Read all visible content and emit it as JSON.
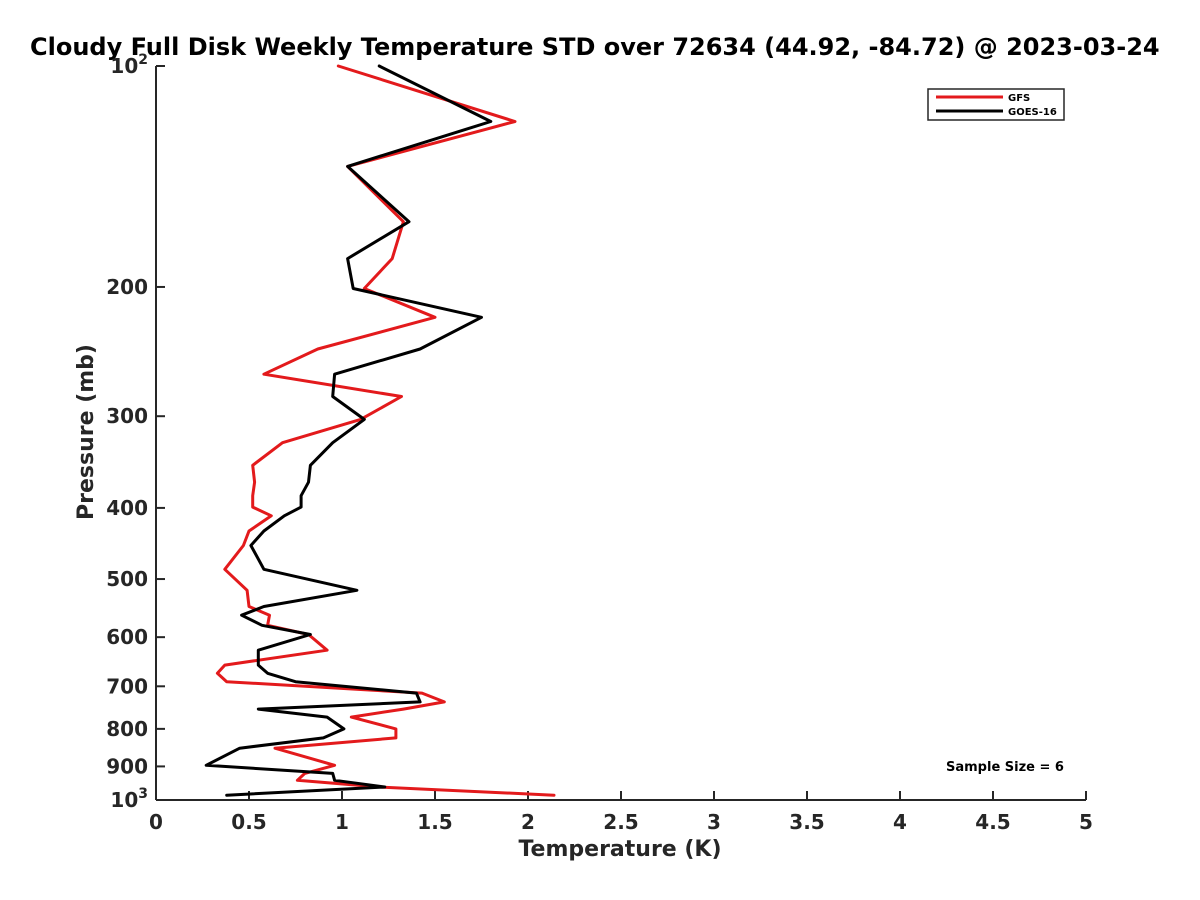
{
  "chart_data": {
    "type": "line",
    "title": "Cloudy Full Disk Weekly Temperature STD over 72634 (44.92, -84.72) @ 2023-03-24",
    "xlabel": "Temperature (K)",
    "ylabel": "Pressure (mb)",
    "xlim": [
      0,
      5
    ],
    "ylim": [
      100,
      1000
    ],
    "y_scale": "log",
    "y_reversed": true,
    "xticks": [
      0,
      0.5,
      1,
      1.5,
      2,
      2.5,
      3,
      3.5,
      4,
      4.5,
      5
    ],
    "xtick_labels": [
      "0",
      "0.5",
      "1",
      "1.5",
      "2",
      "2.5",
      "3",
      "3.5",
      "4",
      "4.5",
      "5"
    ],
    "yticks": [
      100,
      200,
      300,
      400,
      500,
      600,
      700,
      800,
      900,
      1000
    ],
    "ytick_labels": [
      {
        "base": "10",
        "exp": "2"
      },
      {
        "base": "200",
        "exp": ""
      },
      {
        "base": "300",
        "exp": ""
      },
      {
        "base": "400",
        "exp": ""
      },
      {
        "base": "500",
        "exp": ""
      },
      {
        "base": "600",
        "exp": ""
      },
      {
        "base": "700",
        "exp": ""
      },
      {
        "base": "800",
        "exp": ""
      },
      {
        "base": "900",
        "exp": ""
      },
      {
        "base": "10",
        "exp": "3"
      }
    ],
    "grid": false,
    "legend_position": "top-right",
    "annotation": "Sample Size = 6",
    "series": [
      {
        "name": "GFS",
        "color": "#e31a1c",
        "x": [
          0.98,
          1.93,
          1.03,
          1.33,
          1.27,
          1.12,
          1.5,
          0.87,
          0.58,
          1.32,
          1.1,
          0.68,
          0.52,
          0.53,
          0.52,
          0.52,
          0.62,
          0.5,
          0.47,
          0.37,
          0.49,
          0.5,
          0.61,
          0.6,
          0.82,
          0.92,
          0.37,
          0.33,
          0.38,
          1.43,
          1.55,
          1.33,
          1.05,
          1.29,
          1.29,
          0.64,
          0.96,
          0.8,
          0.76,
          1.2,
          2.14
        ],
        "y": [
          100,
          119,
          137,
          163,
          183,
          201,
          220,
          243,
          263,
          282,
          303,
          326,
          350,
          369,
          385,
          399,
          410,
          430,
          450,
          485,
          518,
          545,
          560,
          578,
          595,
          625,
          655,
          672,
          690,
          715,
          735,
          752,
          771,
          800,
          823,
          850,
          897,
          920,
          940,
          960,
          985
        ]
      },
      {
        "name": "GOES-16",
        "color": "#000000",
        "x": [
          1.2,
          1.8,
          1.03,
          1.36,
          1.03,
          1.06,
          1.75,
          1.42,
          0.96,
          0.95,
          1.12,
          0.95,
          0.83,
          0.82,
          0.78,
          0.78,
          0.69,
          0.58,
          0.51,
          0.58,
          1.08,
          0.58,
          0.46,
          0.57,
          0.83,
          0.55,
          0.55,
          0.6,
          0.75,
          1.4,
          1.42,
          0.55,
          0.92,
          1.01,
          0.9,
          0.45,
          0.27,
          0.95,
          0.96,
          1.23,
          0.38
        ]
      }
    ]
  },
  "legend": {
    "items": [
      {
        "label": "GFS",
        "color": "#e31a1c"
      },
      {
        "label": "GOES-16",
        "color": "#000000"
      }
    ]
  }
}
